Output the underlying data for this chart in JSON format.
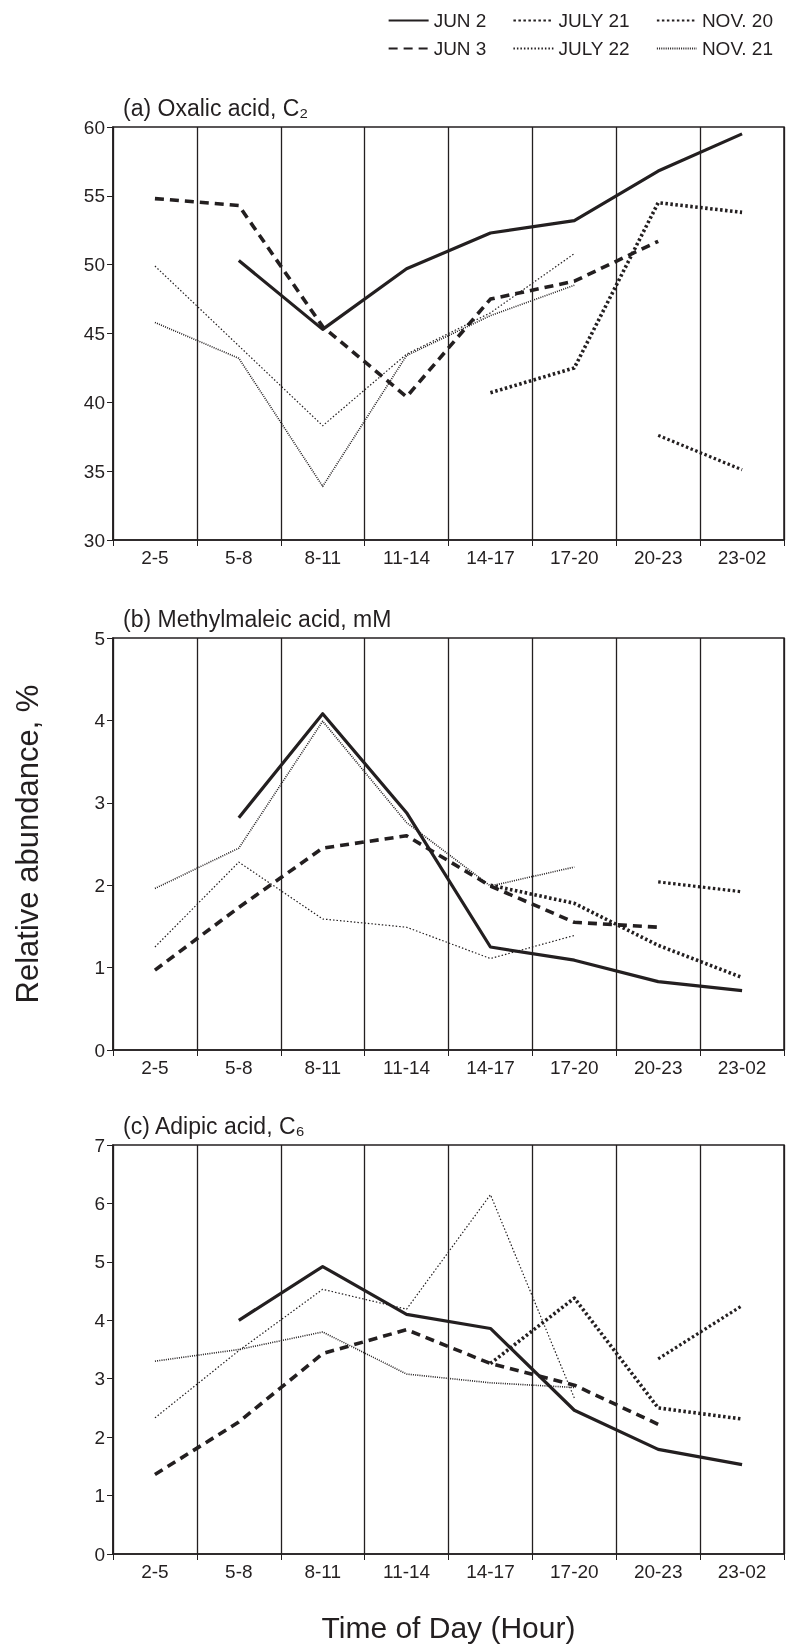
{
  "chart_data": [
    {
      "type": "line",
      "title": "(a) Oxalic acid, C₂",
      "categories": [
        "2-5",
        "5-8",
        "8-11",
        "11-14",
        "14-17",
        "17-20",
        "20-23",
        "23-02"
      ],
      "ylim": [
        30,
        60
      ],
      "yticks": [
        30,
        35,
        40,
        45,
        50,
        55,
        60
      ],
      "grid": "x",
      "legend": "top right",
      "marker": "none",
      "series": [
        {
          "name": "JUN 2",
          "color": "#231f20",
          "line_style": "solid",
          "values": [
            null,
            50.3,
            45.3,
            49.7,
            52.3,
            53.2,
            56.8,
            59.5
          ]
        },
        {
          "name": "JUN 3",
          "color": "#231f20",
          "line_style": "dashed",
          "values": [
            54.8,
            54.3,
            45.5,
            40.4,
            47.5,
            48.8,
            51.7,
            null
          ]
        },
        {
          "name": "JULY 21",
          "color": "#231f20",
          "line_style": "dotted",
          "values": [
            null,
            null,
            null,
            null,
            40.7,
            42.5,
            54.5,
            53.8
          ]
        },
        {
          "name": "JULY 22",
          "color": "#231f20",
          "line_style": "dotted",
          "values": [
            49.9,
            44.1,
            38.3,
            43.5,
            46.5,
            50.8,
            null,
            null
          ]
        },
        {
          "name": "NOV. 20",
          "color": "#231f20",
          "line_style": "dotted",
          "values": [
            null,
            null,
            null,
            null,
            null,
            null,
            37.6,
            35.1
          ]
        },
        {
          "name": "NOV. 21",
          "color": "#231f20",
          "line_style": "dotted",
          "values": [
            45.8,
            43.2,
            33.9,
            43.4,
            46.3,
            48.5,
            null,
            null
          ]
        }
      ]
    },
    {
      "type": "line",
      "title": "(b) Methylmaleic acid, mM",
      "ylabel": "Relative abundance, %",
      "categories": [
        "2-5",
        "5-8",
        "8-11",
        "11-14",
        "14-17",
        "17-20",
        "20-23",
        "23-02"
      ],
      "ylim": [
        0,
        5
      ],
      "yticks": [
        0,
        1,
        2,
        3,
        4,
        5
      ],
      "grid": "x",
      "marker": "none",
      "series": [
        {
          "color": "#231f20",
          "line_style": "solid",
          "values": [
            null,
            2.82,
            4.08,
            2.88,
            1.25,
            1.09,
            0.83,
            0.72
          ]
        },
        {
          "color": "#231f20",
          "line_style": "dashed",
          "values": [
            0.97,
            1.73,
            2.45,
            2.6,
            1.99,
            1.55,
            1.49,
            null
          ]
        },
        {
          "color": "#231f20",
          "line_style": "dotted",
          "values": [
            null,
            null,
            null,
            null,
            2.0,
            1.78,
            1.27,
            0.88
          ]
        },
        {
          "color": "#231f20",
          "line_style": "dotted",
          "values": [
            1.25,
            2.28,
            1.59,
            1.49,
            1.11,
            1.39,
            null,
            null
          ]
        },
        {
          "color": "#231f20",
          "line_style": "dotted",
          "values": [
            null,
            null,
            null,
            null,
            null,
            null,
            2.04,
            1.92
          ]
        },
        {
          "color": "#231f20",
          "line_style": "dotted",
          "values": [
            1.96,
            2.45,
            3.99,
            2.76,
            1.99,
            2.22,
            null,
            null
          ]
        }
      ]
    },
    {
      "type": "line",
      "title": "(c) Adipic acid, C₆",
      "xlabel": "Time of Day (Hour)",
      "categories": [
        "2-5",
        "5-8",
        "8-11",
        "11-14",
        "14-17",
        "17-20",
        "20-23",
        "23-02"
      ],
      "ylim": [
        0,
        7
      ],
      "yticks": [
        0,
        1,
        2,
        3,
        4,
        5,
        6,
        7
      ],
      "grid": "x",
      "marker": "none",
      "series": [
        {
          "color": "#231f20",
          "line_style": "solid",
          "values": [
            null,
            4.0,
            4.92,
            4.1,
            3.86,
            2.46,
            1.79,
            1.53
          ]
        },
        {
          "color": "#231f20",
          "line_style": "dashed",
          "values": [
            1.36,
            2.26,
            3.43,
            3.84,
            3.26,
            2.89,
            2.22,
            null
          ]
        },
        {
          "color": "#231f20",
          "line_style": "dotted",
          "values": [
            null,
            null,
            null,
            null,
            3.26,
            4.38,
            2.5,
            2.31
          ]
        },
        {
          "color": "#231f20",
          "line_style": "dotted",
          "values": [
            2.33,
            3.48,
            4.53,
            4.19,
            6.15,
            2.67,
            null,
            null
          ]
        },
        {
          "color": "#231f20",
          "line_style": "dotted",
          "values": [
            null,
            null,
            null,
            null,
            null,
            null,
            3.34,
            4.25
          ]
        },
        {
          "color": "#231f20",
          "line_style": "dotted",
          "values": [
            3.3,
            3.5,
            3.8,
            3.08,
            2.93,
            2.85,
            null,
            null
          ]
        }
      ]
    }
  ]
}
